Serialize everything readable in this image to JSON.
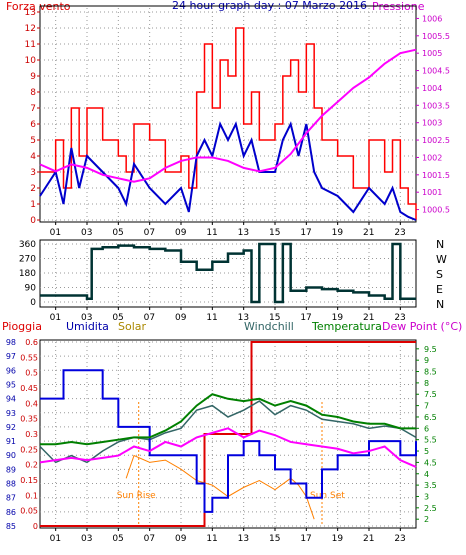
{
  "header": {
    "left": "Forza vento",
    "center": "24 hour graph day : 07 Marzo 2016",
    "right": "Pressione"
  },
  "bottom_header": {
    "pioggia": "Pioggia",
    "umidita": "Umidita",
    "solar": "Solar",
    "windchill": "Windchill",
    "temperatura": "Temperatura",
    "dewpoint": "Dew Point (°C)"
  },
  "colors": {
    "wind_speed": "#ff0000",
    "wind_avg": "#0000cc",
    "pressure": "#ff00ff",
    "direction": "#003333",
    "rain": "#dd0000",
    "humidity": "#0000dd",
    "solar": "#ff8000",
    "windchill": "#336666",
    "temperature": "#008000",
    "dewpoint": "#ff00ff",
    "axis_left": "#cc0000",
    "axis_right": "#cc00cc"
  },
  "chart_data": [
    {
      "type": "line",
      "name": "wind-pressure",
      "x_ticks": [
        "01",
        "03",
        "05",
        "07",
        "09",
        "11",
        "13",
        "15",
        "17",
        "19",
        "21",
        "23"
      ],
      "left_axis": {
        "ticks": [
          "0",
          "1",
          "2",
          "3",
          "4",
          "5",
          "6",
          "7",
          "8",
          "9",
          "10",
          "11",
          "12",
          "13"
        ],
        "ylim": [
          0,
          13
        ]
      },
      "right_axis": {
        "ticks": [
          "1000.5",
          "1001",
          "1001.5",
          "1002",
          "1002.5",
          "1003",
          "1003.5",
          "1004",
          "1004.5",
          "1005",
          "1005.5",
          "1006"
        ],
        "ylim": [
          1000.2,
          1006.3
        ]
      },
      "series": [
        {
          "name": "Forza vento",
          "axis": "left",
          "x": [
            0,
            1,
            1.5,
            2,
            2.5,
            3,
            4,
            5,
            5.5,
            6,
            7,
            8,
            9,
            9.5,
            10,
            10.5,
            11,
            11.5,
            12,
            12.5,
            13,
            13.5,
            14,
            15,
            15.5,
            16,
            16.5,
            17,
            17.5,
            18,
            19,
            20,
            21,
            22,
            22.5,
            23,
            23.5,
            24
          ],
          "values": [
            3,
            5,
            2,
            7,
            4,
            7,
            5,
            4,
            3,
            6,
            5,
            3,
            4,
            2,
            8,
            11,
            7,
            10,
            9,
            12,
            6,
            8,
            5,
            6,
            9,
            10,
            8,
            11,
            7,
            5,
            4,
            2,
            5,
            3,
            5,
            2,
            1,
            0
          ]
        },
        {
          "name": "Vento medio",
          "axis": "left",
          "x": [
            0,
            1,
            1.5,
            2,
            2.5,
            3,
            4,
            5,
            5.5,
            6,
            7,
            8,
            9,
            9.5,
            10,
            10.5,
            11,
            11.5,
            12,
            12.5,
            13,
            13.5,
            14,
            15,
            15.5,
            16,
            16.5,
            17,
            17.5,
            18,
            19,
            20,
            21,
            22,
            22.5,
            23,
            23.5,
            24
          ],
          "values": [
            1.5,
            3,
            1,
            4.5,
            2,
            4,
            3,
            2,
            1,
            3.5,
            2,
            1,
            2,
            0.5,
            4,
            5,
            4,
            6,
            5,
            6,
            4,
            5,
            3,
            3,
            5,
            6,
            4,
            6,
            3,
            2,
            1.5,
            0.5,
            2,
            1,
            2,
            0.5,
            0.2,
            0
          ]
        },
        {
          "name": "Pressione",
          "axis": "right",
          "x": [
            0,
            1,
            2,
            3,
            4,
            5,
            6,
            7,
            8,
            9,
            10,
            11,
            12,
            13,
            14,
            15,
            16,
            17,
            18,
            19,
            20,
            21,
            22,
            23,
            24
          ],
          "values": [
            1001.8,
            1001.6,
            1001.8,
            1001.7,
            1001.5,
            1001.4,
            1001.3,
            1001.4,
            1001.7,
            1001.9,
            1002.0,
            1002.0,
            1001.9,
            1001.7,
            1001.6,
            1001.7,
            1002.1,
            1002.7,
            1003.2,
            1003.6,
            1004.0,
            1004.3,
            1004.7,
            1005.0,
            1005.1
          ]
        }
      ]
    },
    {
      "type": "line",
      "name": "wind-direction",
      "x_ticks": [
        "01",
        "03",
        "05",
        "07",
        "09",
        "11",
        "13",
        "15",
        "17",
        "19",
        "21",
        "23"
      ],
      "left_axis": {
        "ticks": [
          "360",
          "270",
          "180",
          "90",
          "0"
        ],
        "ylim": [
          0,
          360
        ]
      },
      "right_labels": [
        "N",
        "W",
        "S",
        "E",
        "N"
      ],
      "series": [
        {
          "name": "Direzione",
          "x": [
            0,
            2,
            3,
            3.3,
            4,
            5,
            6,
            7,
            8,
            9,
            10,
            11,
            12,
            13,
            13.5,
            14,
            15,
            15.5,
            16,
            17,
            18,
            19,
            20,
            21,
            22,
            22.5,
            23,
            24
          ],
          "values": [
            40,
            40,
            20,
            330,
            340,
            350,
            340,
            330,
            320,
            250,
            200,
            250,
            300,
            320,
            0,
            360,
            0,
            360,
            70,
            90,
            80,
            70,
            60,
            40,
            20,
            360,
            20,
            20
          ]
        }
      ]
    },
    {
      "type": "line",
      "name": "rain-humidity-temp",
      "x_ticks": [
        "01",
        "03",
        "05",
        "07",
        "09",
        "11",
        "13",
        "15",
        "17",
        "19",
        "21",
        "23"
      ],
      "left_axis": {
        "ticks": [
          "85",
          "86",
          "87",
          "88",
          "89",
          "90",
          "91",
          "92",
          "93",
          "94",
          "95",
          "96",
          "97",
          "98"
        ],
        "ylim": [
          85,
          98
        ]
      },
      "rain_axis": {
        "ticks": [
          "0",
          "0.05",
          "0.1",
          "0.15",
          "0.2",
          "0.25",
          "0.3",
          "0.35",
          "0.4",
          "0.45",
          "0.5",
          "0.55",
          "0.6"
        ],
        "ylim": [
          0,
          0.6
        ]
      },
      "right_axis": {
        "ticks": [
          "2",
          "2.5",
          "3",
          "3.5",
          "4",
          "4.5",
          "5",
          "5.5",
          "6",
          "6.5",
          "7",
          "7.5",
          "8",
          "8.5",
          "9",
          "9.5"
        ],
        "ylim": [
          1.7,
          9.8
        ]
      },
      "annotations": [
        "Sun Rise",
        "Sun Set"
      ],
      "series": [
        {
          "name": "Pioggia",
          "axis": "rain",
          "x": [
            0,
            10.5,
            10.5,
            13.5,
            13.5,
            24
          ],
          "values": [
            0,
            0,
            0.3,
            0.3,
            0.6,
            0.6
          ]
        },
        {
          "name": "Umidita",
          "axis": "left",
          "x": [
            0,
            1,
            1.5,
            2,
            3,
            4,
            5,
            6,
            7,
            8,
            9,
            10,
            10.5,
            11,
            12,
            13,
            14,
            15,
            16,
            17,
            18,
            19,
            20,
            21,
            22,
            23,
            24
          ],
          "values": [
            94,
            94,
            96,
            96,
            96,
            94,
            92,
            92,
            90,
            90,
            90,
            88,
            86,
            87,
            90,
            91,
            90,
            89,
            88,
            87,
            89,
            90,
            90,
            91,
            91,
            90,
            91
          ]
        },
        {
          "name": "Solar",
          "axis": "right",
          "x": [
            5.5,
            6,
            7,
            8,
            9,
            10,
            11,
            12,
            13,
            14,
            15,
            16,
            16.5,
            17,
            17.5
          ],
          "values": [
            3.8,
            4.8,
            4.5,
            4.6,
            4.2,
            3.7,
            3.5,
            3.0,
            3.4,
            3.7,
            3.3,
            3.8,
            3.5,
            3.0,
            2.0
          ]
        },
        {
          "name": "Windchill",
          "axis": "right",
          "x": [
            0,
            1,
            2,
            3,
            4,
            5,
            6,
            7,
            8,
            9,
            10,
            11,
            12,
            13,
            14,
            15,
            16,
            17,
            18,
            19,
            20,
            21,
            22,
            23,
            24
          ],
          "values": [
            5.2,
            4.5,
            4.8,
            4.5,
            5.0,
            5.4,
            5.6,
            5.5,
            5.8,
            6.0,
            6.8,
            7.0,
            6.5,
            6.8,
            7.2,
            6.6,
            7.0,
            6.8,
            6.4,
            6.3,
            6.2,
            6.0,
            6.1,
            6.0,
            5.6
          ]
        },
        {
          "name": "Temperatura",
          "axis": "right",
          "x": [
            0,
            1,
            2,
            3,
            4,
            5,
            6,
            7,
            8,
            9,
            10,
            11,
            12,
            13,
            14,
            15,
            16,
            17,
            18,
            19,
            20,
            21,
            22,
            23,
            24
          ],
          "values": [
            5.3,
            5.3,
            5.4,
            5.3,
            5.4,
            5.5,
            5.6,
            5.6,
            5.9,
            6.3,
            7.0,
            7.5,
            7.3,
            7.2,
            7.3,
            7.0,
            7.2,
            7.0,
            6.6,
            6.5,
            6.3,
            6.2,
            6.2,
            6.0,
            6.0
          ]
        },
        {
          "name": "Dew Point (°C)",
          "axis": "right",
          "x": [
            0,
            1,
            2,
            3,
            4,
            5,
            6,
            7,
            8,
            9,
            10,
            11,
            12,
            13,
            14,
            15,
            16,
            17,
            18,
            19,
            20,
            21,
            22,
            23,
            24
          ],
          "values": [
            4.5,
            4.6,
            4.7,
            4.6,
            4.7,
            4.8,
            5.2,
            5.0,
            5.4,
            5.2,
            5.6,
            5.8,
            6.0,
            5.6,
            5.9,
            5.7,
            5.4,
            5.3,
            5.2,
            5.1,
            4.9,
            5.0,
            5.2,
            4.6,
            4.3
          ]
        }
      ]
    }
  ]
}
